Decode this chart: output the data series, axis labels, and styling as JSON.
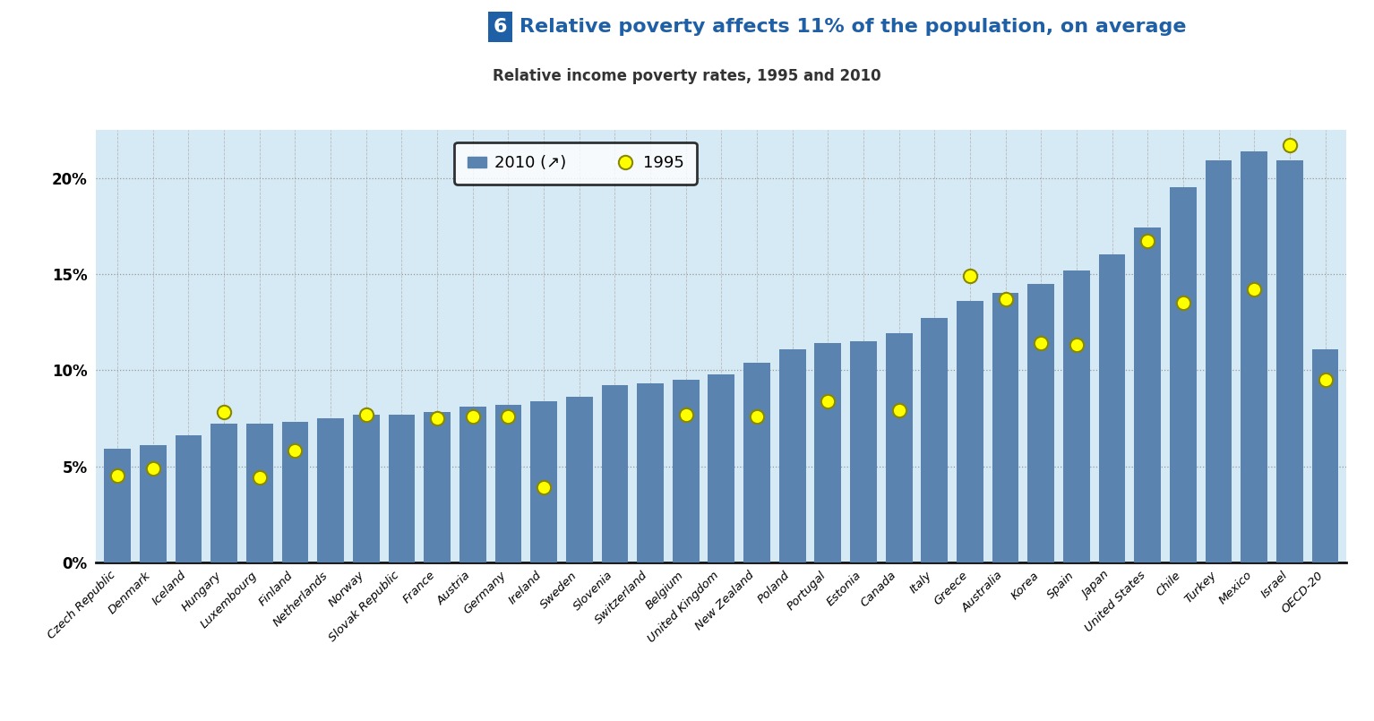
{
  "title_number": "6",
  "title_text": "Relative poverty affects 11% of the population, on average",
  "subtitle": "Relative income poverty rates, 1995 and 2010",
  "bar_color": "#5B83B0",
  "dot_color": "#FFFF00",
  "dot_edge_color": "#888800",
  "background_color": "#D6EAF5",
  "categories": [
    "Czech Republic",
    "Denmark",
    "Iceland",
    "Hungary",
    "Luxembourg",
    "Finland",
    "Netherlands",
    "Norway",
    "Slovak Republic",
    "France",
    "Austria",
    "Germany",
    "Ireland",
    "Sweden",
    "Slovenia",
    "Switzerland",
    "Belgium",
    "United Kingdom",
    "New Zealand",
    "Poland",
    "Portugal",
    "Estonia",
    "Canada",
    "Italy",
    "Greece",
    "Australia",
    "Korea",
    "Spain",
    "Japan",
    "United States",
    "Chile",
    "Turkey",
    "Mexico",
    "Israel",
    "OECD-20"
  ],
  "values_2010": [
    5.9,
    6.1,
    6.6,
    7.2,
    7.2,
    7.3,
    7.5,
    7.7,
    7.7,
    7.8,
    8.1,
    8.2,
    8.4,
    8.6,
    9.2,
    9.3,
    9.5,
    9.8,
    10.4,
    11.1,
    11.4,
    11.5,
    11.9,
    12.7,
    13.6,
    14.0,
    14.5,
    15.2,
    16.0,
    17.4,
    19.5,
    20.9,
    21.4,
    20.9,
    11.1
  ],
  "values_1995": [
    4.5,
    4.9,
    null,
    7.8,
    4.4,
    5.8,
    null,
    7.7,
    null,
    7.5,
    7.6,
    7.6,
    3.9,
    null,
    null,
    null,
    7.7,
    null,
    7.6,
    null,
    8.4,
    null,
    7.9,
    null,
    14.9,
    13.7,
    11.4,
    11.3,
    null,
    16.7,
    13.5,
    null,
    14.2,
    21.7,
    9.5
  ],
  "ylim": [
    0,
    22.5
  ],
  "yticks": [
    0,
    5,
    10,
    15,
    20
  ],
  "ytick_labels": [
    "0%",
    "5%",
    "10%",
    "15%",
    "20%"
  ],
  "legend_2010_label": "2010 (↗)",
  "legend_1995_label": "1995",
  "title_color": "#1F5FA6",
  "subtitle_color": "#333333",
  "grid_color": "#999999"
}
